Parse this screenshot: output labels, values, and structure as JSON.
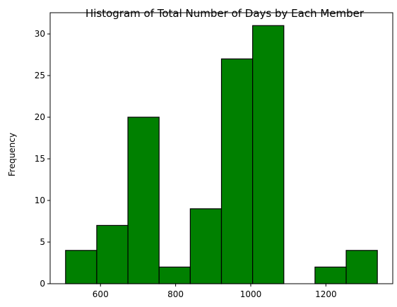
{
  "chart_data": {
    "type": "bar",
    "title": "Histogram of Total Number of Days by Each Member",
    "xlabel": "",
    "ylabel": "Frequency",
    "bar_color": "#008000",
    "edge_color": "#000000",
    "bins": [
      {
        "start": 507,
        "end": 590,
        "count": 4
      },
      {
        "start": 590,
        "end": 673,
        "count": 7
      },
      {
        "start": 673,
        "end": 756,
        "count": 20
      },
      {
        "start": 756,
        "end": 839,
        "count": 2
      },
      {
        "start": 839,
        "end": 922,
        "count": 9
      },
      {
        "start": 922,
        "end": 1005,
        "count": 27
      },
      {
        "start": 1005,
        "end": 1088,
        "count": 31
      },
      {
        "start": 1088,
        "end": 1171,
        "count": 0
      },
      {
        "start": 1171,
        "end": 1254,
        "count": 2
      },
      {
        "start": 1254,
        "end": 1337,
        "count": 4
      }
    ],
    "xlim": [
      466,
      1378
    ],
    "ylim": [
      0,
      32.55
    ],
    "xticks": [
      600,
      800,
      1000,
      1200
    ],
    "yticks": [
      0,
      5,
      10,
      15,
      20,
      25,
      30
    ],
    "grid": false
  }
}
